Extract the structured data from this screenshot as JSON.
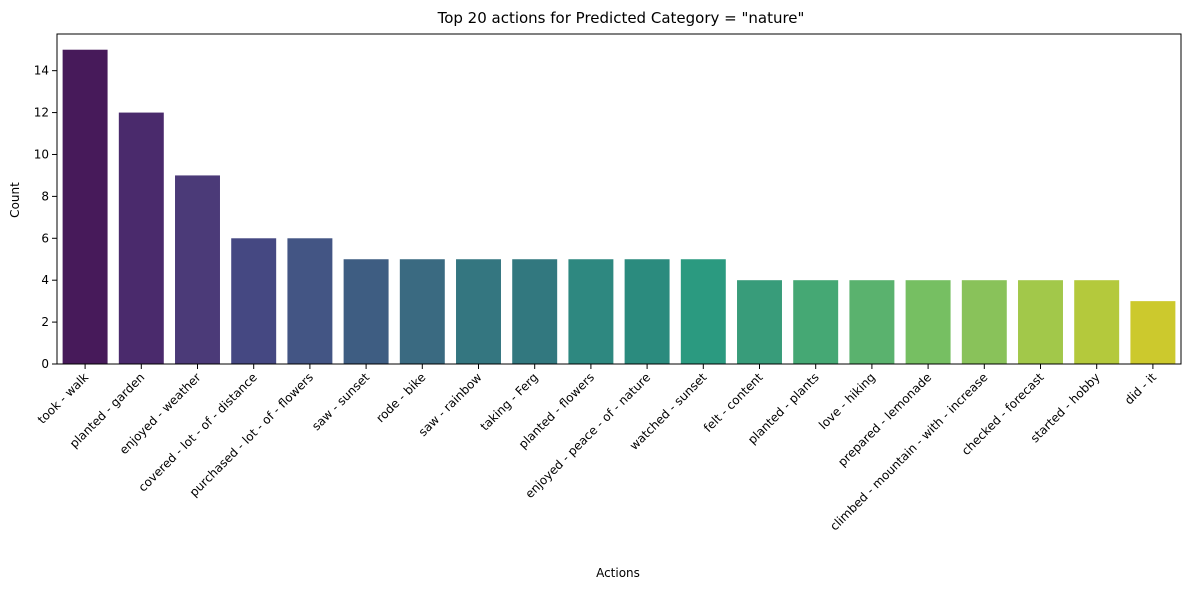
{
  "chart_data": {
    "type": "bar",
    "title": "Top 20 actions for Predicted Category = \"nature\"",
    "xlabel": "Actions",
    "ylabel": "Count",
    "ylim": [
      0,
      15.75
    ],
    "yticks": [
      0,
      2,
      4,
      6,
      8,
      10,
      12,
      14
    ],
    "grid": false,
    "categories": [
      "took - walk",
      "planted - garden",
      "enjoyed - weather",
      "covered - lot - of - distance",
      "purchased - lot - of - flowers",
      "saw - sunset",
      "rode - bike",
      "saw - rainbow",
      "taking - Ferg",
      "planted - flowers",
      "enjoyed - peace - of - nature",
      "watched - sunset",
      "felt - content",
      "planted - plants",
      "love - hiking",
      "prepared - lemonade",
      "climbed - mountain - with - increase",
      "checked - forecast",
      "started - hobby",
      "did - it"
    ],
    "values": [
      15,
      12,
      9,
      6,
      6,
      5,
      5,
      5,
      5,
      5,
      5,
      5,
      4,
      4,
      4,
      4,
      4,
      4,
      4,
      3
    ],
    "colors": [
      "#471a5a",
      "#4a2a6c",
      "#4b3a78",
      "#454882",
      "#435584",
      "#3e5d82",
      "#3a6a81",
      "#347680",
      "#32787f",
      "#2e8880",
      "#2b8b7e",
      "#2b9a80",
      "#389c7a",
      "#45a874",
      "#5ab26e",
      "#76bf62",
      "#89c25a",
      "#a2c84a",
      "#b4c93c",
      "#ccc92d"
    ]
  }
}
